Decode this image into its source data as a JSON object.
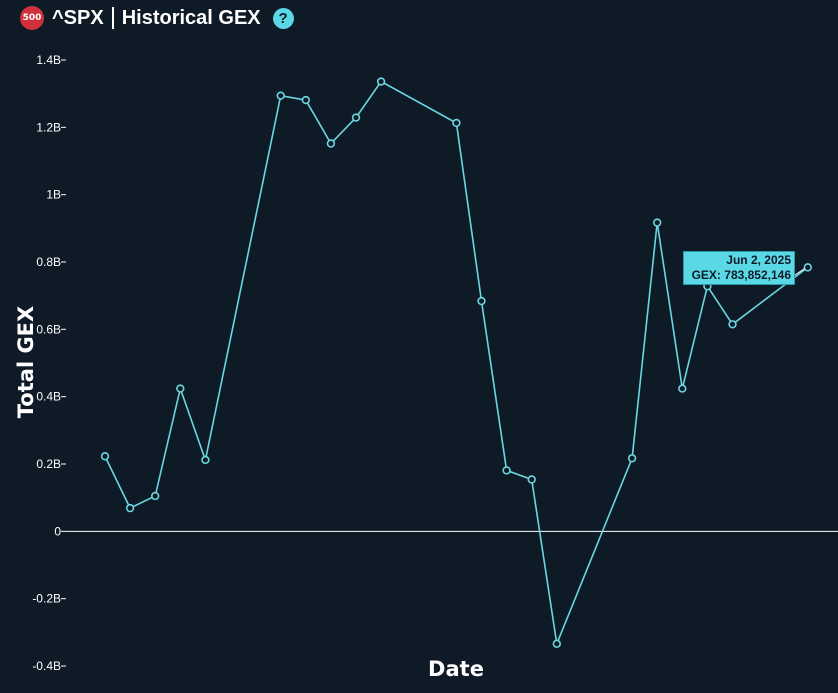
{
  "header": {
    "badge": "500",
    "ticker": "^SPX",
    "title": "Historical GEX",
    "help_icon": "?"
  },
  "colors": {
    "background": "#0f1a27",
    "line": "#6ad7e0",
    "accent": "#5ad8e6",
    "badge": "#d0313d",
    "zero_line": "#ffffff"
  },
  "tooltip": {
    "date": "Jun 2, 2025",
    "value": "GEX: 783,852,146"
  },
  "chart_data": {
    "type": "line",
    "title": "",
    "xlabel": "Date",
    "ylabel": "Total GEX",
    "ylim": [
      -0.4,
      1.4
    ],
    "yticks": [
      "1.4B",
      "1.2B",
      "1B",
      "0.8B",
      "0.6B",
      "0.4B",
      "0.2B",
      "0",
      "-0.2B",
      "-0.4B"
    ],
    "ytick_values": [
      1.4,
      1.2,
      1.0,
      0.8,
      0.6,
      0.4,
      0.2,
      0,
      -0.2,
      -0.4
    ],
    "grid": false,
    "series": [
      {
        "values": [
          0.223,
          0.069,
          0.105,
          0.424,
          0.212,
          1.294,
          1.281,
          1.152,
          1.229,
          1.336,
          1.213,
          0.684,
          0.181,
          0.154,
          -0.334,
          0.217,
          0.917,
          0.424,
          0.728,
          0.615,
          0.784
        ]
      }
    ],
    "point_count": 29,
    "point_slots": [
      0,
      1,
      2,
      3,
      4,
      7,
      8,
      9,
      10,
      11,
      14,
      15,
      16,
      17,
      18,
      21,
      22,
      23,
      24,
      25,
      28
    ]
  }
}
